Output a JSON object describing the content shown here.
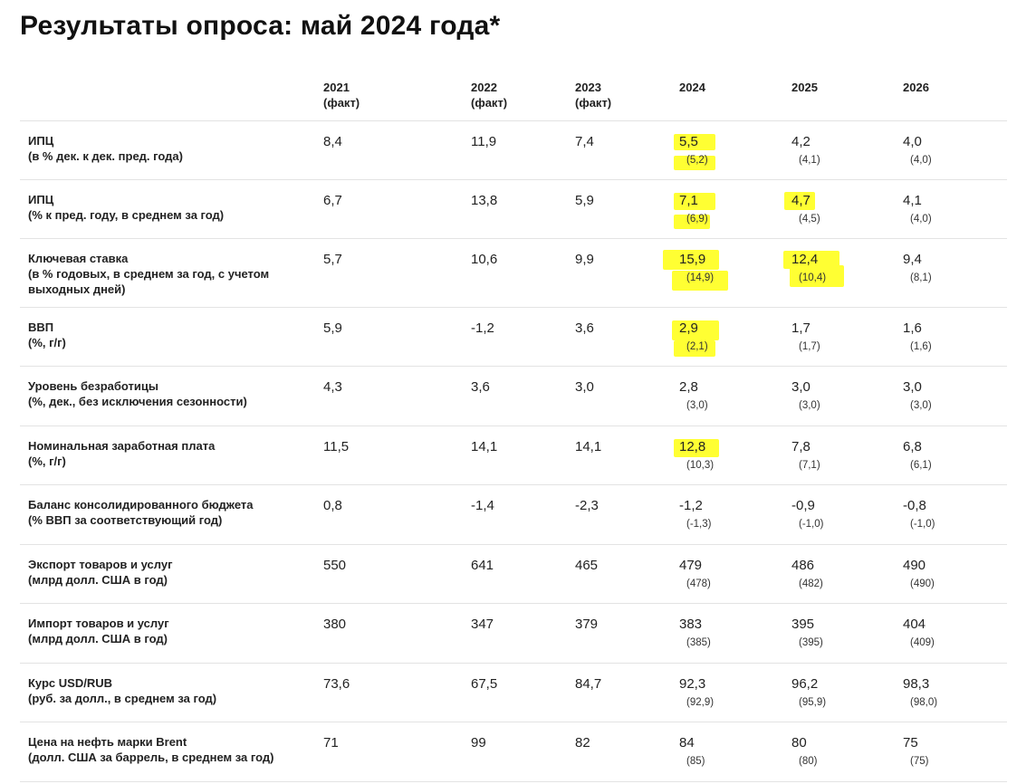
{
  "title": "Результаты опроса: май 2024 года*",
  "columns": [
    {
      "year": "2021",
      "note": "(факт)"
    },
    {
      "year": "2022",
      "note": "(факт)"
    },
    {
      "year": "2023",
      "note": "(факт)"
    },
    {
      "year": "2024",
      "note": ""
    },
    {
      "year": "2025",
      "note": ""
    },
    {
      "year": "2026",
      "note": ""
    }
  ],
  "rows": [
    {
      "label1": "ИПЦ",
      "label2": "(в % дек. к дек. пред. года)",
      "label3": "",
      "values": [
        "8,4",
        "11,9",
        "7,4",
        "5,5",
        "4,2",
        "4,0"
      ],
      "prev": [
        "(5,2)",
        "(4,1)",
        "(4,0)"
      ]
    },
    {
      "label1": "ИПЦ",
      "label2": "(% к пред. году, в среднем за год)",
      "label3": "",
      "values": [
        "6,7",
        "13,8",
        "5,9",
        "7,1",
        "4,7",
        "4,1"
      ],
      "prev": [
        "(6,9)",
        "(4,5)",
        "(4,0)"
      ]
    },
    {
      "label1": "Ключевая ставка",
      "label2": "(в % годовых, в среднем за год, с учетом",
      "label3": "выходных дней)",
      "values": [
        "5,7",
        "10,6",
        "9,9",
        "15,9",
        "12,4",
        "9,4"
      ],
      "prev": [
        "(14,9)",
        "(10,4)",
        "(8,1)"
      ]
    },
    {
      "label1": "ВВП",
      "label2": "(%, г/г)",
      "label3": "",
      "values": [
        "5,9",
        "-1,2",
        "3,6",
        "2,9",
        "1,7",
        "1,6"
      ],
      "prev": [
        "(2,1)",
        "(1,7)",
        "(1,6)"
      ]
    },
    {
      "label1": "Уровень безработицы",
      "label2": "(%, дек., без исключения сезонности)",
      "label3": "",
      "values": [
        "4,3",
        "3,6",
        "3,0",
        "2,8",
        "3,0",
        "3,0"
      ],
      "prev": [
        "(3,0)",
        "(3,0)",
        "(3,0)"
      ]
    },
    {
      "label1": "Номинальная заработная плата",
      "label2": "(%, г/г)",
      "label3": "",
      "values": [
        "11,5",
        "14,1",
        "14,1",
        "12,8",
        "7,8",
        "6,8"
      ],
      "prev": [
        "(10,3)",
        "(7,1)",
        "(6,1)"
      ]
    },
    {
      "label1": "Баланс консолидированного бюджета",
      "label2": "(% ВВП за соответствующий год)",
      "label3": "",
      "values": [
        "0,8",
        "-1,4",
        "-2,3",
        "-1,2",
        "-0,9",
        "-0,8"
      ],
      "prev": [
        "(-1,3)",
        "(-1,0)",
        "(-1,0)"
      ]
    },
    {
      "label1": "Экспорт товаров и услуг",
      "label2": "(млрд долл. США в год)",
      "label3": "",
      "values": [
        "550",
        "641",
        "465",
        "479",
        "486",
        "490"
      ],
      "prev": [
        "(478)",
        "(482)",
        "(490)"
      ]
    },
    {
      "label1": "Импорт товаров и услуг",
      "label2": "(млрд долл. США в год)",
      "label3": "",
      "values": [
        "380",
        "347",
        "379",
        "383",
        "395",
        "404"
      ],
      "prev": [
        "(385)",
        "(395)",
        "(409)"
      ]
    },
    {
      "label1": "Курс USD/RUB",
      "label2": "(руб. за долл., в среднем за год)",
      "label3": "",
      "values": [
        "73,6",
        "67,5",
        "84,7",
        "92,3",
        "96,2",
        "98,3"
      ],
      "prev": [
        "(92,9)",
        "(95,9)",
        "(98,0)"
      ]
    },
    {
      "label1": "Цена на нефть марки Brent",
      "label2": "(долл. США за баррель, в среднем за год)",
      "label3": "",
      "values": [
        "71",
        "99",
        "82",
        "84",
        "80",
        "75"
      ],
      "prev": [
        "(85)",
        "(80)",
        "(75)"
      ]
    }
  ],
  "colors": {
    "highlight": "#ffff33",
    "divider": "#e3e3e3",
    "text": "#222222"
  }
}
